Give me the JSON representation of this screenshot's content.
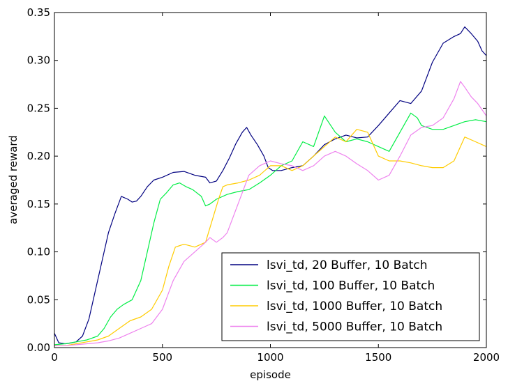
{
  "chart_data": {
    "type": "line",
    "title": "",
    "xlabel": "episode",
    "ylabel": "averaged reward",
    "xlim": [
      0,
      2000
    ],
    "ylim": [
      0,
      0.35
    ],
    "xticks": [
      0,
      500,
      1000,
      1500,
      2000
    ],
    "xtick_labels": [
      "0",
      "500",
      "1000",
      "1500",
      "2000"
    ],
    "yticks": [
      0,
      0.05,
      0.1,
      0.15,
      0.2,
      0.25,
      0.3,
      0.35
    ],
    "ytick_labels": [
      "0.00",
      "0.05",
      "0.10",
      "0.15",
      "0.20",
      "0.25",
      "0.30",
      "0.35"
    ],
    "grid": false,
    "legend_position": "lower-right",
    "series": [
      {
        "name": "lsvi_td, 20 Buffer, 10 Batch",
        "color": "#000080",
        "x": [
          0,
          20,
          50,
          80,
          100,
          130,
          160,
          190,
          220,
          250,
          280,
          310,
          340,
          360,
          380,
          400,
          430,
          460,
          500,
          550,
          600,
          650,
          700,
          720,
          750,
          780,
          810,
          840,
          870,
          890,
          910,
          940,
          970,
          990,
          1010,
          1050,
          1100,
          1150,
          1200,
          1250,
          1300,
          1350,
          1400,
          1450,
          1500,
          1550,
          1600,
          1650,
          1700,
          1750,
          1800,
          1850,
          1880,
          1900,
          1930,
          1960,
          1980,
          2000
        ],
        "y": [
          0.015,
          0.005,
          0.004,
          0.005,
          0.006,
          0.012,
          0.03,
          0.06,
          0.09,
          0.12,
          0.14,
          0.158,
          0.155,
          0.152,
          0.153,
          0.158,
          0.168,
          0.175,
          0.178,
          0.183,
          0.184,
          0.18,
          0.178,
          0.172,
          0.174,
          0.185,
          0.198,
          0.213,
          0.225,
          0.23,
          0.222,
          0.212,
          0.2,
          0.188,
          0.185,
          0.185,
          0.188,
          0.19,
          0.2,
          0.212,
          0.218,
          0.222,
          0.219,
          0.22,
          0.232,
          0.245,
          0.258,
          0.255,
          0.268,
          0.298,
          0.318,
          0.325,
          0.328,
          0.335,
          0.328,
          0.32,
          0.31,
          0.305
        ]
      },
      {
        "name": "lsvi_td, 100 Buffer, 10 Batch",
        "color": "#00ee44",
        "x": [
          0,
          50,
          100,
          150,
          200,
          230,
          260,
          290,
          320,
          360,
          400,
          430,
          460,
          490,
          520,
          550,
          580,
          610,
          640,
          680,
          700,
          720,
          750,
          800,
          850,
          900,
          950,
          1000,
          1050,
          1100,
          1150,
          1200,
          1250,
          1300,
          1350,
          1400,
          1450,
          1500,
          1550,
          1600,
          1650,
          1680,
          1700,
          1750,
          1800,
          1850,
          1900,
          1950,
          2000
        ],
        "y": [
          0.003,
          0.004,
          0.006,
          0.008,
          0.012,
          0.02,
          0.032,
          0.04,
          0.045,
          0.05,
          0.07,
          0.1,
          0.13,
          0.155,
          0.162,
          0.17,
          0.172,
          0.168,
          0.165,
          0.158,
          0.148,
          0.15,
          0.155,
          0.16,
          0.163,
          0.165,
          0.172,
          0.18,
          0.19,
          0.195,
          0.215,
          0.21,
          0.242,
          0.225,
          0.215,
          0.218,
          0.215,
          0.21,
          0.205,
          0.225,
          0.245,
          0.24,
          0.232,
          0.228,
          0.228,
          0.232,
          0.236,
          0.238,
          0.236
        ]
      },
      {
        "name": "lsvi_td, 1000 Buffer, 10 Batch",
        "color": "#ffcc00",
        "x": [
          0,
          50,
          100,
          150,
          200,
          250,
          300,
          350,
          400,
          450,
          500,
          530,
          560,
          600,
          650,
          700,
          720,
          740,
          760,
          780,
          800,
          850,
          900,
          950,
          1000,
          1050,
          1100,
          1150,
          1200,
          1250,
          1300,
          1350,
          1400,
          1450,
          1500,
          1550,
          1600,
          1650,
          1700,
          1750,
          1800,
          1850,
          1900,
          1950,
          2000
        ],
        "y": [
          0.002,
          0.002,
          0.004,
          0.006,
          0.008,
          0.012,
          0.02,
          0.028,
          0.032,
          0.04,
          0.06,
          0.085,
          0.105,
          0.108,
          0.105,
          0.11,
          0.125,
          0.14,
          0.155,
          0.168,
          0.17,
          0.172,
          0.175,
          0.18,
          0.19,
          0.19,
          0.185,
          0.19,
          0.2,
          0.21,
          0.22,
          0.215,
          0.228,
          0.225,
          0.2,
          0.195,
          0.195,
          0.193,
          0.19,
          0.188,
          0.188,
          0.195,
          0.22,
          0.215,
          0.21
        ]
      },
      {
        "name": "lsvi_td, 5000 Buffer, 10 Batch",
        "color": "#ee82ee",
        "x": [
          0,
          50,
          100,
          150,
          200,
          250,
          300,
          350,
          400,
          450,
          500,
          550,
          600,
          650,
          700,
          720,
          750,
          780,
          800,
          850,
          900,
          950,
          1000,
          1050,
          1100,
          1150,
          1200,
          1250,
          1300,
          1350,
          1400,
          1450,
          1500,
          1550,
          1600,
          1650,
          1700,
          1750,
          1800,
          1850,
          1880,
          1900,
          1930,
          1960,
          2000
        ],
        "y": [
          0.002,
          0.002,
          0.003,
          0.004,
          0.005,
          0.007,
          0.01,
          0.015,
          0.02,
          0.025,
          0.04,
          0.07,
          0.09,
          0.1,
          0.11,
          0.115,
          0.11,
          0.115,
          0.12,
          0.15,
          0.18,
          0.19,
          0.195,
          0.192,
          0.19,
          0.185,
          0.19,
          0.2,
          0.205,
          0.2,
          0.192,
          0.185,
          0.175,
          0.18,
          0.2,
          0.222,
          0.23,
          0.232,
          0.24,
          0.26,
          0.278,
          0.272,
          0.262,
          0.255,
          0.242
        ]
      }
    ]
  }
}
